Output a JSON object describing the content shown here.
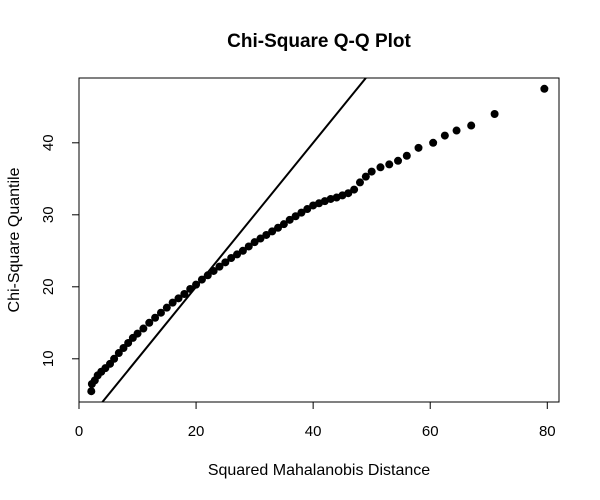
{
  "chart_data": {
    "type": "scatter",
    "title": "Chi-Square Q-Q Plot",
    "xlabel": "Squared Mahalanobis Distance",
    "ylabel": "Chi-Square Quantile",
    "xlim": [
      0,
      82
    ],
    "ylim": [
      4,
      49
    ],
    "x_ticks": [
      "0",
      "20",
      "40",
      "60",
      "80"
    ],
    "x_tick_values": [
      0,
      20,
      40,
      60,
      80
    ],
    "y_ticks": [
      "10",
      "20",
      "30",
      "40"
    ],
    "y_tick_values": [
      10,
      20,
      30,
      40
    ],
    "grid": false,
    "reference_line": {
      "slope": 1,
      "intercept": 0
    },
    "points": [
      [
        2.1,
        5.5
      ],
      [
        2.2,
        6.5
      ],
      [
        2.7,
        7.0
      ],
      [
        3.2,
        7.7
      ],
      [
        3.8,
        8.2
      ],
      [
        4.5,
        8.7
      ],
      [
        5.3,
        9.3
      ],
      [
        6.0,
        10.0
      ],
      [
        6.8,
        10.8
      ],
      [
        7.6,
        11.5
      ],
      [
        8.4,
        12.2
      ],
      [
        9.2,
        12.9
      ],
      [
        10.0,
        13.5
      ],
      [
        11.0,
        14.2
      ],
      [
        12.0,
        15.0
      ],
      [
        13.0,
        15.7
      ],
      [
        14.0,
        16.4
      ],
      [
        15.0,
        17.1
      ],
      [
        16.0,
        17.8
      ],
      [
        17.0,
        18.4
      ],
      [
        18.0,
        19.0
      ],
      [
        19.0,
        19.7
      ],
      [
        20.0,
        20.3
      ],
      [
        21.0,
        21.0
      ],
      [
        22.0,
        21.6
      ],
      [
        23.0,
        22.2
      ],
      [
        24.0,
        22.8
      ],
      [
        25.0,
        23.4
      ],
      [
        26.0,
        24.0
      ],
      [
        27.0,
        24.5
      ],
      [
        28.0,
        25.0
      ],
      [
        29.0,
        25.6
      ],
      [
        30.0,
        26.2
      ],
      [
        31.0,
        26.7
      ],
      [
        32.0,
        27.2
      ],
      [
        33.0,
        27.7
      ],
      [
        34.0,
        28.2
      ],
      [
        35.0,
        28.7
      ],
      [
        36.0,
        29.3
      ],
      [
        37.0,
        29.8
      ],
      [
        38.0,
        30.3
      ],
      [
        39.0,
        30.8
      ],
      [
        40.0,
        31.3
      ],
      [
        41.0,
        31.6
      ],
      [
        42.0,
        31.9
      ],
      [
        43.0,
        32.2
      ],
      [
        44.0,
        32.4
      ],
      [
        45.0,
        32.7
      ],
      [
        46.0,
        33.0
      ],
      [
        47.0,
        33.5
      ],
      [
        48.0,
        34.5
      ],
      [
        49.0,
        35.3
      ],
      [
        50.0,
        36.0
      ],
      [
        51.5,
        36.6
      ],
      [
        53.0,
        37.0
      ],
      [
        54.5,
        37.5
      ],
      [
        56.0,
        38.2
      ],
      [
        58.0,
        39.3
      ],
      [
        60.5,
        40.0
      ],
      [
        62.5,
        41.0
      ],
      [
        64.5,
        41.7
      ],
      [
        67.0,
        42.4
      ],
      [
        71.0,
        44.0
      ],
      [
        79.5,
        47.5
      ]
    ]
  }
}
